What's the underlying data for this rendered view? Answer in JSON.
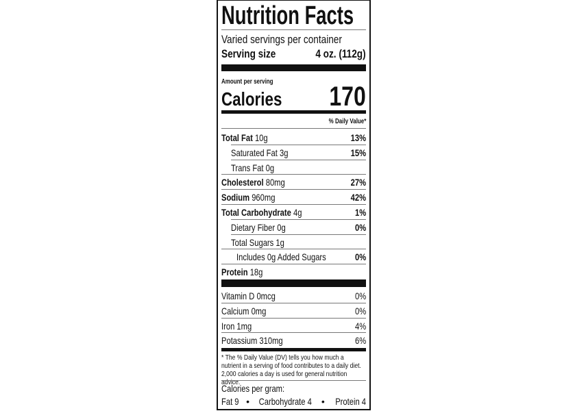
{
  "title": "Nutrition Facts",
  "servings": "Varied servings per container",
  "serving_size_label": "Serving size",
  "serving_size_value": "4 oz. (112g)",
  "amount_per_serving": "Amount per serving",
  "calories_label": "Calories",
  "calories_value": "170",
  "dv_header": "% Daily Value*",
  "nutrients": [
    {
      "name": "Total Fat",
      "amount": "10g",
      "dv": "13%"
    },
    {
      "name": "Saturated Fat",
      "amount": "3g",
      "dv": "15%"
    },
    {
      "name": "Trans Fat",
      "amount": "0g",
      "dv": ""
    },
    {
      "name": "Cholesterol",
      "amount": "80mg",
      "dv": "27%"
    },
    {
      "name": "Sodium",
      "amount": "960mg",
      "dv": "42%"
    },
    {
      "name": "Total Carbohydrate",
      "amount": "4g",
      "dv": "1%"
    },
    {
      "name": "Dietary Fiber",
      "amount": "0g",
      "dv": "0%"
    },
    {
      "name": "Total Sugars",
      "amount": "1g",
      "dv": ""
    },
    {
      "name": "Includes 0g Added Sugars",
      "amount": "",
      "dv": "0%"
    },
    {
      "name": "Protein",
      "amount": "18g",
      "dv": ""
    }
  ],
  "vitamins": [
    {
      "name": "Vitamin D 0mcg",
      "dv": "0%"
    },
    {
      "name": "Calcium 0mg",
      "dv": "0%"
    },
    {
      "name": "Iron 1mg",
      "dv": "4%"
    },
    {
      "name": "Potassium 310mg",
      "dv": "6%"
    }
  ],
  "footnote": "* The % Daily Value (DV) tells you how much a nutrient in a serving of food contributes to a daily diet. 2,000 calories a day is used for general nutrition advice.",
  "calories_per_gram": "Calories per gram:",
  "per_gram": {
    "fat": "Fat 9",
    "carb": "Carbohydrate 4",
    "protein": "Protein 4",
    "bullet": "•"
  }
}
